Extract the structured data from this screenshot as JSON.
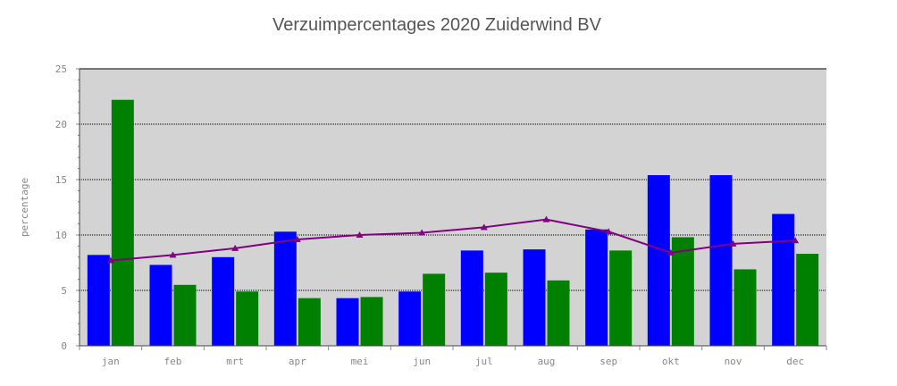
{
  "chart_data": {
    "type": "bar",
    "title": "Verzuimpercentages 2020 Zuiderwind BV",
    "ylabel": "percentage",
    "xlabel": "",
    "ylim": [
      0,
      25
    ],
    "yticks": [
      0,
      5,
      10,
      15,
      20,
      25
    ],
    "grid": true,
    "categories": [
      "jan",
      "feb",
      "mrt",
      "apr",
      "mei",
      "jun",
      "jul",
      "aug",
      "sep",
      "okt",
      "nov",
      "dec"
    ],
    "series": [
      {
        "type": "bar",
        "color": "#0000ff",
        "values": [
          8.2,
          7.3,
          8.0,
          10.3,
          4.3,
          4.9,
          8.6,
          8.7,
          10.5,
          15.4,
          15.4,
          11.9
        ]
      },
      {
        "type": "bar",
        "color": "#008000",
        "values": [
          22.2,
          5.5,
          4.9,
          4.3,
          4.4,
          6.5,
          6.6,
          5.9,
          8.6,
          9.8,
          6.9,
          8.3
        ]
      },
      {
        "type": "line",
        "color": "#800080",
        "marker": "triangle",
        "values": [
          7.7,
          8.2,
          8.8,
          9.6,
          10.0,
          10.2,
          10.7,
          11.4,
          10.3,
          8.4,
          9.2,
          9.5
        ]
      }
    ],
    "colors": {
      "plot_background": "#d3d3d3",
      "gridline": "#000000"
    }
  }
}
